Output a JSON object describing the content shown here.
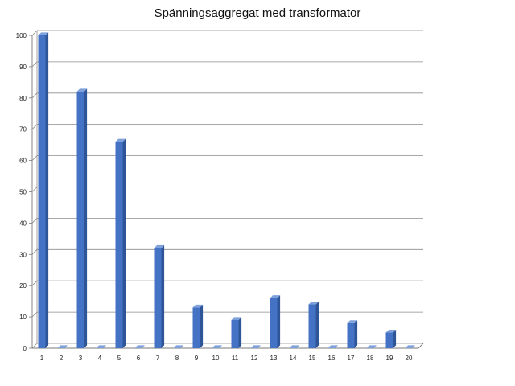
{
  "chart_data": {
    "type": "bar",
    "title": "Spänningsaggregat med transformator",
    "categories": [
      "1",
      "2",
      "3",
      "4",
      "5",
      "6",
      "7",
      "8",
      "9",
      "10",
      "11",
      "12",
      "13",
      "14",
      "15",
      "16",
      "17",
      "18",
      "19",
      "20"
    ],
    "values": [
      100,
      0,
      82,
      0,
      66,
      0,
      32,
      0,
      13,
      0,
      9,
      0,
      16,
      0,
      14,
      0,
      8,
      0,
      5,
      0
    ],
    "ylim": [
      0,
      100
    ],
    "yticks": [
      0,
      10,
      20,
      30,
      40,
      50,
      60,
      70,
      80,
      90,
      100
    ],
    "grid": true,
    "bar_color": "#4472C4",
    "bar_side_color": "#2E5597",
    "bar_top_color": "#7FA1DB"
  }
}
